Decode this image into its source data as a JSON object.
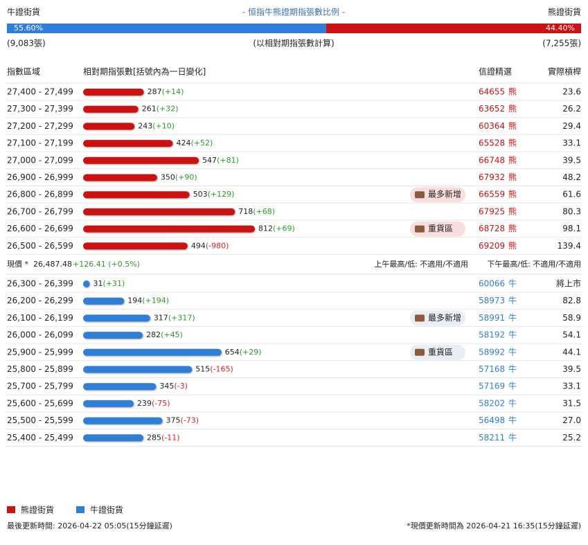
{
  "header": {
    "left": "牛證街貨",
    "title": "- 恒指牛熊證期指張數比例 -",
    "right": "熊證街貨",
    "bull_ratio": {
      "value": 55.6,
      "label": "55.60%"
    },
    "bear_ratio": {
      "value": 44.4,
      "label": "44.40%"
    },
    "bull_count": "(9,083張)",
    "note": "(以相對期指張數計算)",
    "bear_count": "(7,255張)"
  },
  "columns": [
    "指數區域",
    "相對期指張數[括號內為一日變化]",
    "信證精選",
    "實際槓桿"
  ],
  "bear_rows": [
    {
      "range": "27,400 - 27,499",
      "count": 287,
      "change": "(+14)",
      "code": "64655",
      "kind": "熊",
      "leverage": "23.6"
    },
    {
      "range": "27,300 - 27,399",
      "count": 261,
      "change": "(+32)",
      "code": "63652",
      "kind": "熊",
      "leverage": "26.2"
    },
    {
      "range": "27,200 - 27,299",
      "count": 243,
      "change": "(+10)",
      "code": "60364",
      "kind": "熊",
      "leverage": "29.4"
    },
    {
      "range": "27,100 - 27,199",
      "count": 424,
      "change": "(+52)",
      "code": "65528",
      "kind": "熊",
      "leverage": "33.1"
    },
    {
      "range": "27,000 - 27,099",
      "count": 547,
      "change": "(+81)",
      "code": "66748",
      "kind": "熊",
      "leverage": "39.5"
    },
    {
      "range": "26,900 - 26,999",
      "count": 350,
      "change": "(+90)",
      "code": "67932",
      "kind": "熊",
      "leverage": "48.2"
    },
    {
      "range": "26,800 - 26,899",
      "count": 503,
      "change": "(+129)",
      "code": "66559",
      "kind": "熊",
      "leverage": "61.6",
      "badge": "最多新增"
    },
    {
      "range": "26,700 - 26,799",
      "count": 718,
      "change": "(+68)",
      "code": "67925",
      "kind": "熊",
      "leverage": "80.3"
    },
    {
      "range": "26,600 - 26,699",
      "count": 812,
      "change": "(+69)",
      "code": "68728",
      "kind": "熊",
      "leverage": "98.1",
      "badge": "重貨區"
    },
    {
      "range": "26,500 - 26,599",
      "count": 494,
      "change": "(-980)",
      "code": "69209",
      "kind": "熊",
      "leverage": "139.4"
    }
  ],
  "price_row": {
    "label": "現價 *",
    "price": "26,487.48",
    "change": "+126.41 (+0.5%)",
    "am": "上午最高/低: 不適用/不適用",
    "pm": "下午最高/低: 不適用/不適用"
  },
  "bull_rows": [
    {
      "range": "26,300 - 26,399",
      "count": 31,
      "change": "(+31)",
      "code": "60066",
      "kind": "牛",
      "leverage": "將上市"
    },
    {
      "range": "26,200 - 26,299",
      "count": 194,
      "change": "(+194)",
      "code": "58973",
      "kind": "牛",
      "leverage": "82.8"
    },
    {
      "range": "26,100 - 26,199",
      "count": 317,
      "change": "(+317)",
      "code": "58991",
      "kind": "牛",
      "leverage": "58.9",
      "badge": "最多新增"
    },
    {
      "range": "26,000 - 26,099",
      "count": 282,
      "change": "(+45)",
      "code": "58192",
      "kind": "牛",
      "leverage": "54.1"
    },
    {
      "range": "25,900 - 25,999",
      "count": 654,
      "change": "(+29)",
      "code": "58992",
      "kind": "牛",
      "leverage": "44.1",
      "badge": "重貨區"
    },
    {
      "range": "25,800 - 25,899",
      "count": 515,
      "change": "(-165)",
      "code": "57168",
      "kind": "牛",
      "leverage": "39.5"
    },
    {
      "range": "25,700 - 25,799",
      "count": 345,
      "change": "(-3)",
      "code": "57169",
      "kind": "牛",
      "leverage": "33.1"
    },
    {
      "range": "25,600 - 25,699",
      "count": 239,
      "change": "(-75)",
      "code": "58202",
      "kind": "牛",
      "leverage": "31.5"
    },
    {
      "range": "25,500 - 25,599",
      "count": 375,
      "change": "(-73)",
      "code": "56498",
      "kind": "牛",
      "leverage": "27.0"
    },
    {
      "range": "25,400 - 25,499",
      "count": 285,
      "change": "(-11)",
      "code": "58211",
      "kind": "牛",
      "leverage": "25.2"
    }
  ],
  "legend": [
    "熊證街貨",
    "牛證街貨"
  ],
  "footer": {
    "left": "最後更新時間: 2026-04-22 05:05(15分鐘延遲)",
    "right": "*現價更新時間為 2026-04-21 16:35(15分鐘延遲)"
  }
}
